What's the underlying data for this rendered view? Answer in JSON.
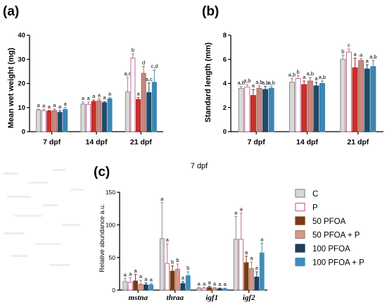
{
  "colors": {
    "C": "#d9d9d9",
    "P": "#ffffff",
    "50 PFOA": "#c9302c",
    "50 PFOA + P": "#c9877c",
    "100 PFOA": "#1f4a68",
    "100 PFOA + P": "#3b86b2"
  },
  "legend": {
    "items": [
      {
        "label": "C",
        "color": "#d9d9d9",
        "edge": "#8a8a8a"
      },
      {
        "label": "P",
        "color": "#ffffff",
        "edge": "#c66b9a"
      },
      {
        "label": "50 PFOA",
        "color": "#7a3a12",
        "edge": "#7a3a12"
      },
      {
        "label": "50 PFOA + P",
        "color": "#d39a8c",
        "edge": "#b07a6c"
      },
      {
        "label": "100 PFOA",
        "color": "#1f3e5a",
        "edge": "#1f3e5a"
      },
      {
        "label": "100 PFOA + P",
        "color": "#3f8db8",
        "edge": "#3f8db8"
      }
    ]
  },
  "chart_data": [
    {
      "panel": "(a)",
      "type": "bar",
      "ylabel": "Mean wet weight  (mg)",
      "ylim": [
        0,
        40
      ],
      "yticks": [
        "0",
        "10",
        "20",
        "30",
        "40"
      ],
      "categories": [
        "7 dpf",
        "14 dpf",
        "21 dpf"
      ],
      "series_colors": [
        "#d9d9d9",
        "#ffffff",
        "#c9302c",
        "#c9877c",
        "#1f4a68",
        "#3b86b2"
      ],
      "series_edges": [
        "#8a8a8a",
        "#c66b9a",
        "#b02020",
        "#a86a5e",
        "#1f4a68",
        "#3b86b2"
      ],
      "values": [
        [
          9.0,
          8.7,
          8.5,
          8.8,
          8.0,
          9.2
        ],
        [
          11.5,
          11.3,
          12.5,
          12.8,
          12.0,
          13.6
        ],
        [
          16.5,
          30.5,
          13.3,
          24.2,
          16.2,
          20.5
        ]
      ],
      "errors": [
        [
          0.4,
          0.5,
          0.3,
          0.6,
          0.7,
          0.8
        ],
        [
          0.8,
          1.0,
          0.6,
          0.8,
          0.5,
          0.5
        ],
        [
          6.0,
          1.8,
          0.8,
          2.8,
          4.0,
          5.0
        ]
      ],
      "labels": [
        [
          "a",
          "a",
          "a",
          "a",
          "a",
          "a"
        ],
        [
          "a",
          "a",
          "a",
          "a",
          "a",
          "a"
        ],
        [
          "a,c",
          "b",
          "a",
          "d",
          "a,c",
          "c,d"
        ]
      ]
    },
    {
      "panel": "(b)",
      "type": "bar",
      "ylabel": "Standard length (mm)",
      "ylim": [
        0,
        8
      ],
      "yticks": [
        "0",
        "2",
        "4",
        "6",
        "8"
      ],
      "categories": [
        "7 dpf",
        "14 dpf",
        "21 dpf"
      ],
      "series_colors": [
        "#d9d9d9",
        "#ffffff",
        "#c9302c",
        "#c9877c",
        "#1f4a68",
        "#3b86b2"
      ],
      "series_edges": [
        "#8a8a8a",
        "#c66b9a",
        "#b02020",
        "#a86a5e",
        "#1f4a68",
        "#3b86b2"
      ],
      "values": [
        [
          3.6,
          3.7,
          3.0,
          3.6,
          3.5,
          3.6
        ],
        [
          4.1,
          4.4,
          3.9,
          4.2,
          3.8,
          4.0
        ],
        [
          6.0,
          6.6,
          5.3,
          5.9,
          5.2,
          5.4
        ]
      ],
      "errors": [
        [
          0.15,
          0.2,
          0.5,
          0.2,
          0.25,
          0.15
        ],
        [
          0.3,
          0.25,
          0.3,
          0.3,
          0.3,
          0.2
        ],
        [
          0.35,
          0.25,
          0.8,
          0.15,
          0.35,
          0.5
        ]
      ],
      "labels": [
        [
          "a,b",
          "a,b",
          "a",
          "a,b",
          "a,b",
          "a,b"
        ],
        [
          "a,b",
          "b",
          "a",
          "a,b",
          "a",
          "a,b"
        ],
        [
          "b",
          "c",
          "a",
          "a",
          "a",
          "a,b"
        ]
      ]
    },
    {
      "panel": "(c)",
      "type": "bar",
      "title": "7 dpf",
      "ylabel": "Relative abundance a.u.",
      "ylim": [
        0,
        150
      ],
      "yticks": [
        "0",
        "50",
        "100",
        "150"
      ],
      "categories": [
        "mstna",
        "thraa",
        "igf1",
        "igf2"
      ],
      "series_colors": [
        "#d9d9d9",
        "#ffffff",
        "#7a3a12",
        "#d39a8c",
        "#1f3e5a",
        "#3f8db8"
      ],
      "series_edges": [
        "#8a8a8a",
        "#c66b9a",
        "#7a3a12",
        "#b07a6c",
        "#1f3e5a",
        "#3f8db8"
      ],
      "values": [
        [
          13,
          12,
          14,
          9,
          8,
          8
        ],
        [
          79,
          41,
          29,
          32,
          10,
          22
        ],
        [
          3,
          3,
          4,
          3,
          2,
          2
        ],
        [
          78,
          78,
          42,
          33,
          20,
          57
        ]
      ],
      "errors": [
        [
          5,
          7,
          10,
          6,
          3,
          2
        ],
        [
          55,
          30,
          8,
          8,
          3,
          6
        ],
        [
          1,
          1,
          2,
          1,
          1,
          1
        ],
        [
          35,
          40,
          10,
          10,
          8,
          15
        ]
      ],
      "labels": [
        [
          "a",
          "a",
          "a",
          "a",
          "a",
          "a"
        ],
        [
          "a",
          "a",
          "b",
          "b",
          "a",
          "b"
        ],
        [
          "a",
          "a",
          "a",
          "a",
          "a",
          "a"
        ],
        [
          "a",
          "a",
          "a",
          "a",
          "a",
          "a"
        ]
      ]
    }
  ]
}
